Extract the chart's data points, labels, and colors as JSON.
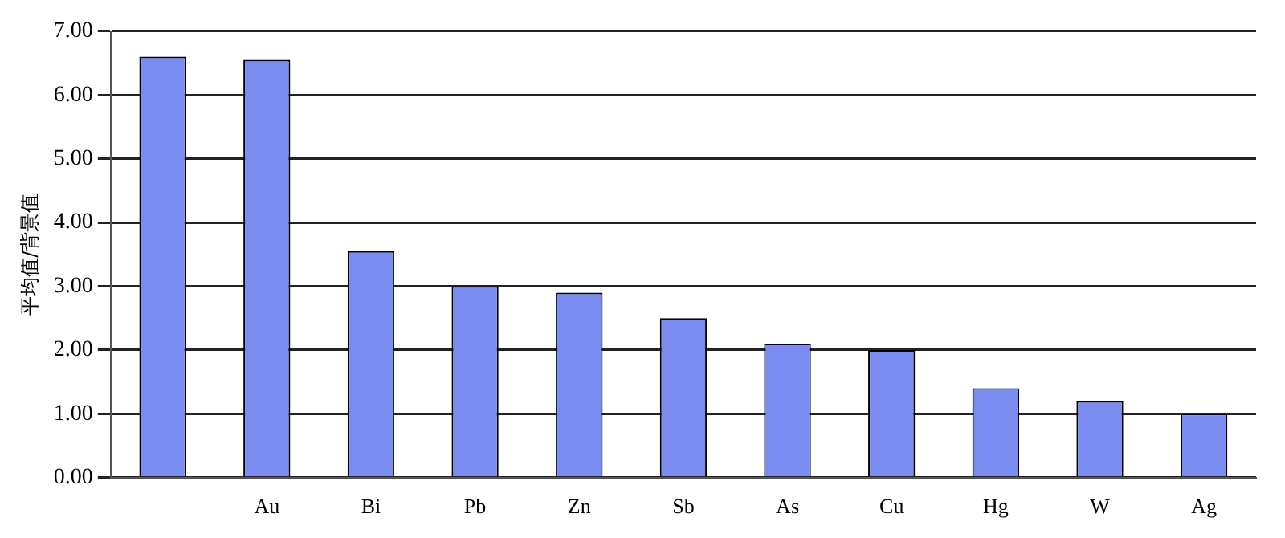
{
  "chart_data": {
    "type": "bar",
    "ylabel": "平均值/背景值",
    "categories": [
      null,
      "Au",
      "Bi",
      "Pb",
      "Zn",
      "Sb",
      "As",
      "Cu",
      "Hg",
      "W",
      "Ag"
    ],
    "values": [
      6.6,
      6.55,
      3.55,
      3.0,
      2.9,
      2.5,
      2.1,
      2.0,
      1.4,
      1.2,
      1.0
    ],
    "color": "#7b8cf0",
    "ylim": [
      0,
      7
    ],
    "yticks": [
      {
        "value": 0,
        "label": "0.00"
      },
      {
        "value": 1,
        "label": "1.00"
      },
      {
        "value": 2,
        "label": "2.00"
      },
      {
        "value": 3,
        "label": "3.00"
      },
      {
        "value": 4,
        "label": "4.00"
      },
      {
        "value": 5,
        "label": "5.00"
      },
      {
        "value": 6,
        "label": "6.00"
      },
      {
        "value": 7,
        "label": "7.00"
      }
    ],
    "grid": "y"
  }
}
